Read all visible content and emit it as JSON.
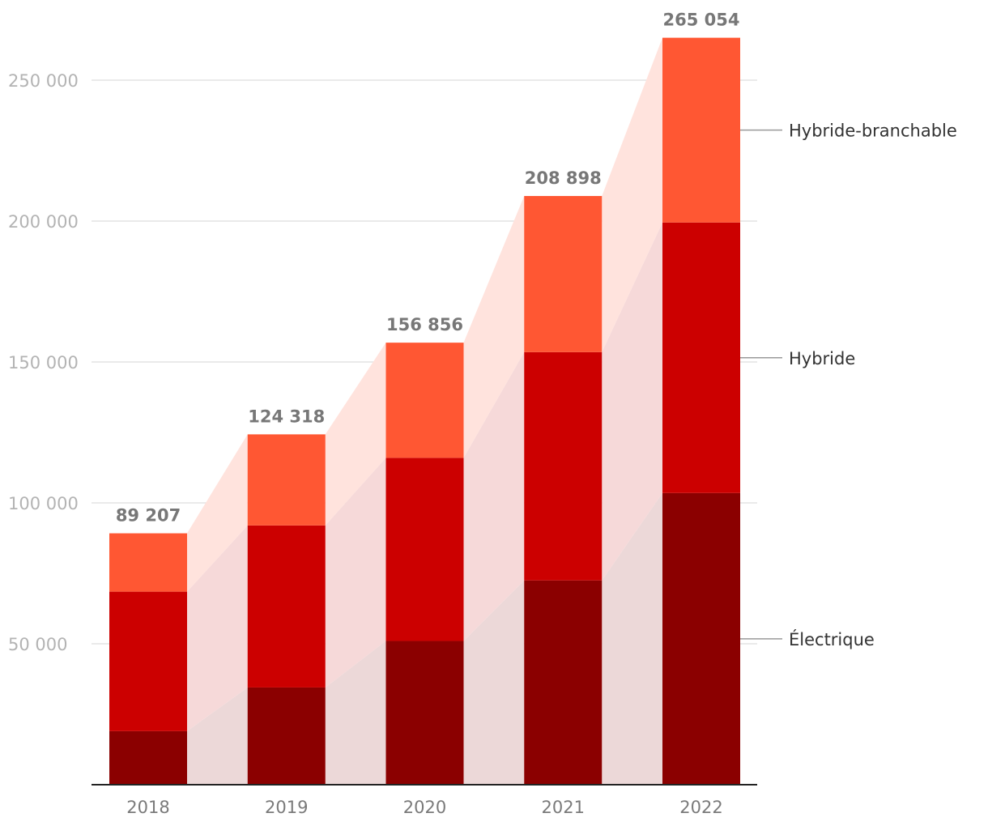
{
  "chart_data": {
    "type": "bar",
    "stacked": true,
    "categories": [
      "2018",
      "2019",
      "2020",
      "2021",
      "2022"
    ],
    "series": [
      {
        "name": "Électrique",
        "color": "#8b0000",
        "values": [
          19000,
          34500,
          51000,
          72500,
          103500
        ]
      },
      {
        "name": "Hybride",
        "color": "#cc0000",
        "values": [
          49500,
          57500,
          65000,
          81000,
          96000
        ]
      },
      {
        "name": "Hybride-branchable",
        "color": "#ff5733",
        "values": [
          20707,
          32318,
          40856,
          55398,
          65554
        ]
      }
    ],
    "totals": [
      "89 207",
      "124 318",
      "156 856",
      "208 898",
      "265 054"
    ],
    "total_values": [
      89207,
      124318,
      156856,
      208898,
      265054
    ],
    "y_ticks": [
      {
        "value": 50000,
        "label": "50 000"
      },
      {
        "value": 100000,
        "label": "100 000"
      },
      {
        "value": 150000,
        "label": "150 000"
      },
      {
        "value": 200000,
        "label": "200 000"
      },
      {
        "value": 250000,
        "label": "250 000"
      }
    ],
    "ylim": [
      0,
      275000
    ],
    "grid": true,
    "legend_placement": "right, inline labels",
    "title": "",
    "xlabel": "",
    "ylabel": ""
  }
}
